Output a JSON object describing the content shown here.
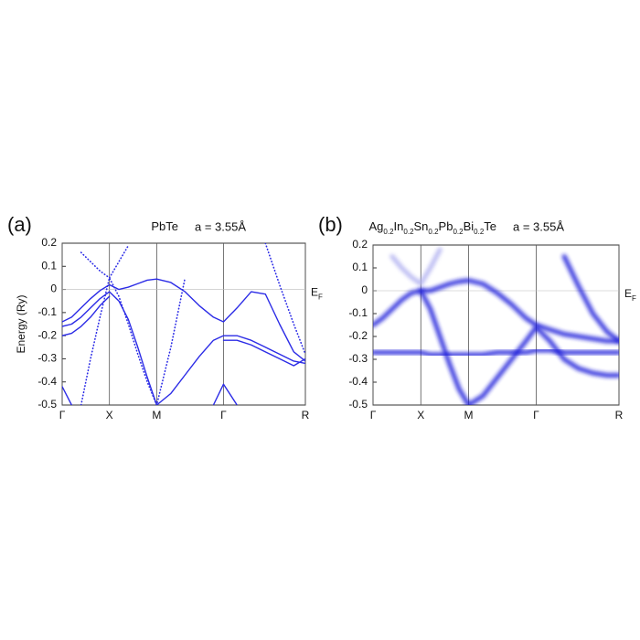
{
  "chart_data": [
    {
      "type": "line",
      "panel_label": "(a)",
      "title": [
        "PbTe"
      ],
      "lattice": "a = 3.55Å",
      "ylabel": "Energy (Ry)",
      "fermi_label": [
        "E",
        "F"
      ],
      "hline": 0,
      "blur": false,
      "x": [
        0,
        0.1,
        0.2,
        0.3,
        0.4,
        0.5,
        0.6,
        0.7,
        0.8,
        0.9,
        1.0,
        1.15,
        1.3,
        1.45,
        1.6,
        1.707,
        1.85,
        2.0,
        2.15,
        2.3,
        2.45,
        2.573
      ],
      "xlim": [
        0,
        2.573
      ],
      "xticks": [
        {
          "value": 0,
          "label": "Γ"
        },
        {
          "value": 0.5,
          "label": "X"
        },
        {
          "value": 1.0,
          "label": "M"
        },
        {
          "value": 1.707,
          "label": "Γ"
        },
        {
          "value": 2.573,
          "label": "R"
        }
      ],
      "ylim": [
        -0.5,
        0.2
      ],
      "yticks": [
        0.2,
        0.1,
        0,
        -0.1,
        -0.2,
        -0.3,
        -0.4,
        -0.5
      ],
      "series": [
        {
          "color": "#2b2be6",
          "style": "solid",
          "values": [
            -0.14,
            -0.12,
            -0.08,
            -0.04,
            -0.005,
            0.02,
            0.0,
            0.01,
            0.025,
            0.04,
            0.045,
            0.03,
            -0.01,
            -0.07,
            -0.12,
            -0.14,
            -0.08,
            -0.01,
            -0.02,
            -0.15,
            -0.27,
            -0.31
          ]
        },
        {
          "color": "#2b2be6",
          "style": "solid",
          "values": [
            -0.16,
            -0.15,
            -0.12,
            -0.08,
            -0.04,
            -0.01,
            -0.05,
            -0.13,
            -0.25,
            -0.38,
            -0.5,
            -0.45,
            -0.37,
            -0.29,
            -0.22,
            -0.2,
            -0.2,
            -0.22,
            -0.25,
            -0.28,
            -0.31,
            -0.32
          ]
        },
        {
          "color": "#2b2be6",
          "style": "solid",
          "values": [
            -0.2,
            -0.19,
            -0.16,
            -0.12,
            -0.07,
            -0.03,
            null,
            null,
            null,
            null,
            null,
            null,
            null,
            null,
            null,
            null,
            null,
            null,
            null,
            null,
            null,
            null
          ]
        },
        {
          "color": "#2b2be6",
          "style": "solid",
          "values": [
            null,
            null,
            null,
            null,
            null,
            null,
            null,
            null,
            null,
            null,
            null,
            null,
            null,
            null,
            null,
            -0.22,
            -0.22,
            -0.24,
            -0.27,
            -0.3,
            -0.33,
            -0.3
          ]
        },
        {
          "color": "#2b2be6",
          "style": "dotted",
          "values": [
            null,
            null,
            0.16,
            0.12,
            0.08,
            0.05,
            0.12,
            0.19,
            null,
            null,
            null,
            null,
            null,
            null,
            null,
            null,
            null,
            null,
            null,
            null,
            null,
            null
          ]
        },
        {
          "color": "#2b2be6",
          "style": "dotted",
          "values": [
            null,
            null,
            -0.5,
            -0.3,
            -0.12,
            0.05,
            -0.03,
            -0.15,
            -0.28,
            -0.4,
            -0.5,
            -0.25,
            0.05,
            null,
            null,
            null,
            null,
            null,
            null,
            null,
            null,
            null
          ]
        },
        {
          "color": "#2b2be6",
          "style": "dotted",
          "values": [
            null,
            null,
            null,
            null,
            null,
            null,
            null,
            null,
            null,
            null,
            null,
            null,
            null,
            null,
            null,
            null,
            null,
            null,
            0.2,
            0.02,
            -0.15,
            -0.28
          ]
        },
        {
          "color": "#2b2be6",
          "style": "solid",
          "values": [
            -0.42,
            -0.5,
            null,
            null,
            null,
            null,
            null,
            null,
            null,
            null,
            null,
            null,
            null,
            null,
            -0.5,
            -0.41,
            -0.5,
            null,
            null,
            null,
            null,
            null
          ]
        }
      ]
    },
    {
      "type": "line",
      "panel_label": "(b)",
      "title": [
        "Ag",
        "0.2",
        "In",
        "0.2",
        "Sn",
        "0.2",
        "Pb",
        "0.2",
        "Bi",
        "0.2",
        "Te"
      ],
      "lattice": "a = 3.55Å",
      "fermi_label": [
        "E",
        "F"
      ],
      "hline": 0,
      "blur": true,
      "x": [
        0,
        0.1,
        0.2,
        0.3,
        0.4,
        0.5,
        0.6,
        0.7,
        0.8,
        0.9,
        1.0,
        1.15,
        1.3,
        1.45,
        1.6,
        1.707,
        1.85,
        2.0,
        2.15,
        2.3,
        2.45,
        2.573
      ],
      "xlim": [
        0,
        2.573
      ],
      "xticks": [
        {
          "value": 0,
          "label": "Γ"
        },
        {
          "value": 0.5,
          "label": "X"
        },
        {
          "value": 1.0,
          "label": "M"
        },
        {
          "value": 1.707,
          "label": "Γ"
        },
        {
          "value": 2.573,
          "label": "R"
        }
      ],
      "ylim": [
        -0.5,
        0.2
      ],
      "yticks": [
        0.2,
        0.1,
        0,
        -0.1,
        -0.2,
        -0.3,
        -0.4,
        -0.5
      ],
      "series": [
        {
          "color": "#1a1ad9",
          "style": "solid",
          "values": [
            -0.15,
            -0.12,
            -0.08,
            -0.04,
            -0.01,
            0.0,
            0.0,
            0.015,
            0.03,
            0.04,
            0.045,
            0.03,
            -0.01,
            -0.06,
            -0.12,
            -0.15,
            -0.17,
            -0.19,
            -0.2,
            -0.21,
            -0.22,
            -0.22
          ]
        },
        {
          "color": "#1a1ad9",
          "style": "solid",
          "values": [
            -0.27,
            -0.27,
            -0.27,
            -0.27,
            -0.27,
            -0.27,
            -0.28,
            -0.28,
            -0.28,
            -0.28,
            -0.28,
            -0.28,
            -0.27,
            -0.27,
            -0.27,
            -0.26,
            -0.26,
            -0.27,
            -0.27,
            -0.27,
            -0.27,
            -0.27
          ]
        },
        {
          "color": "#1a1ad9",
          "style": "solid",
          "values": [
            null,
            null,
            null,
            null,
            null,
            0.0,
            -0.08,
            -0.2,
            -0.32,
            -0.43,
            -0.5,
            -0.46,
            -0.38,
            -0.3,
            -0.22,
            -0.16,
            -0.22,
            -0.3,
            -0.34,
            -0.36,
            -0.37,
            -0.37
          ]
        },
        {
          "color": "#1a1ad9",
          "style": "solid",
          "values": [
            null,
            null,
            null,
            null,
            null,
            null,
            null,
            null,
            null,
            null,
            null,
            null,
            null,
            null,
            null,
            null,
            null,
            0.15,
            0.02,
            -0.1,
            -0.18,
            -0.22
          ]
        },
        {
          "color": "#b0b0f0",
          "style": "solid",
          "values": [
            null,
            null,
            0.15,
            0.1,
            0.06,
            0.03,
            0.1,
            0.18,
            null,
            null,
            null,
            null,
            null,
            null,
            null,
            null,
            null,
            null,
            null,
            null,
            null,
            null
          ]
        }
      ]
    }
  ]
}
